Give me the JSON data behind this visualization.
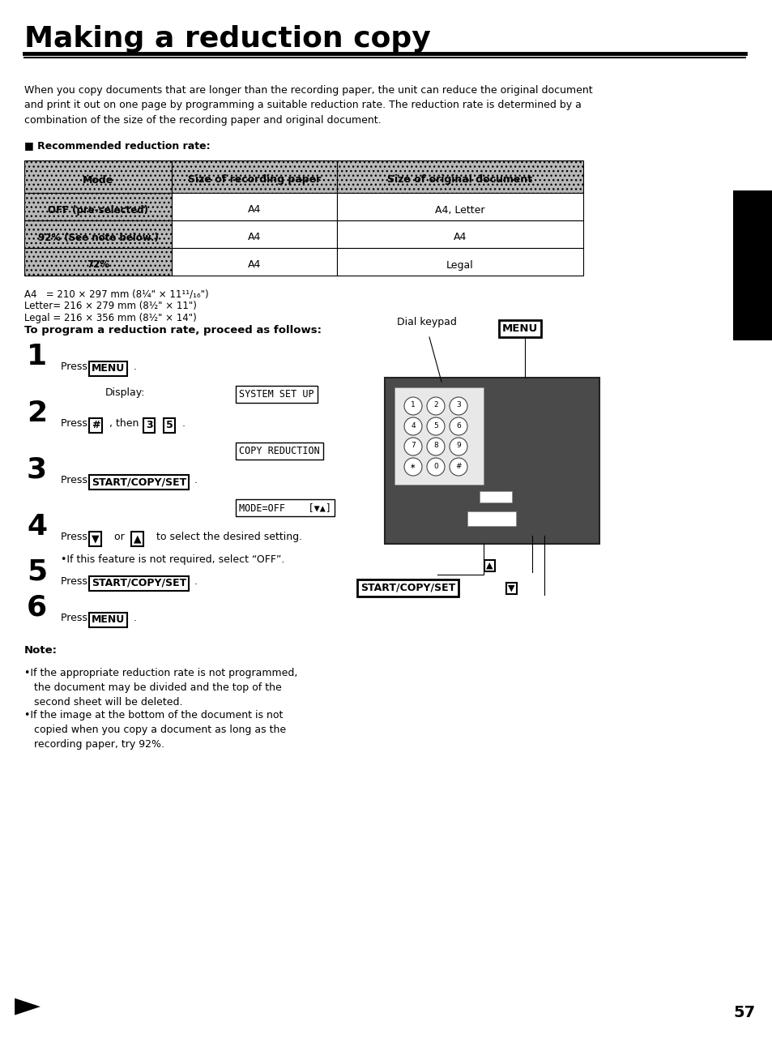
{
  "title": "Making a reduction copy",
  "bg_color": "#ffffff",
  "page_number": "57",
  "intro_text": "When you copy documents that are longer than the recording paper, the unit can reduce the original document\nand print it out on one page by programming a suitable reduction rate. The reduction rate is determined by a\ncombination of the size of the recording paper and original document.",
  "section_title": "■ Recommended reduction rate:",
  "table_headers": [
    "Mode",
    "Size of recording paper",
    "Size of original document"
  ],
  "table_rows": [
    [
      "OFF (pre-selected)",
      "A4",
      "A4, Letter"
    ],
    [
      "92% (See note below.)",
      "A4",
      "A4"
    ],
    [
      "72%",
      "A4",
      "Legal"
    ]
  ],
  "footnote1": "A4   = 210 × 297 mm (8¼\" × 11¹¹/₁₆\")",
  "footnote2": "Letter= 216 × 279 mm (8½\" × 11\")",
  "footnote3": "Legal = 216 × 356 mm (8½\" × 14\")",
  "procedure_title": "To program a reduction rate, proceed as follows:",
  "note_title": "Note:",
  "note1": "•If the appropriate reduction rate is not programmed,\n   the document may be divided and the top of the\n   second sheet will be deleted.",
  "note2": "•If the image at the bottom of the document is not\n   copied when you copy a document as long as the\n   recording paper, try 92%."
}
